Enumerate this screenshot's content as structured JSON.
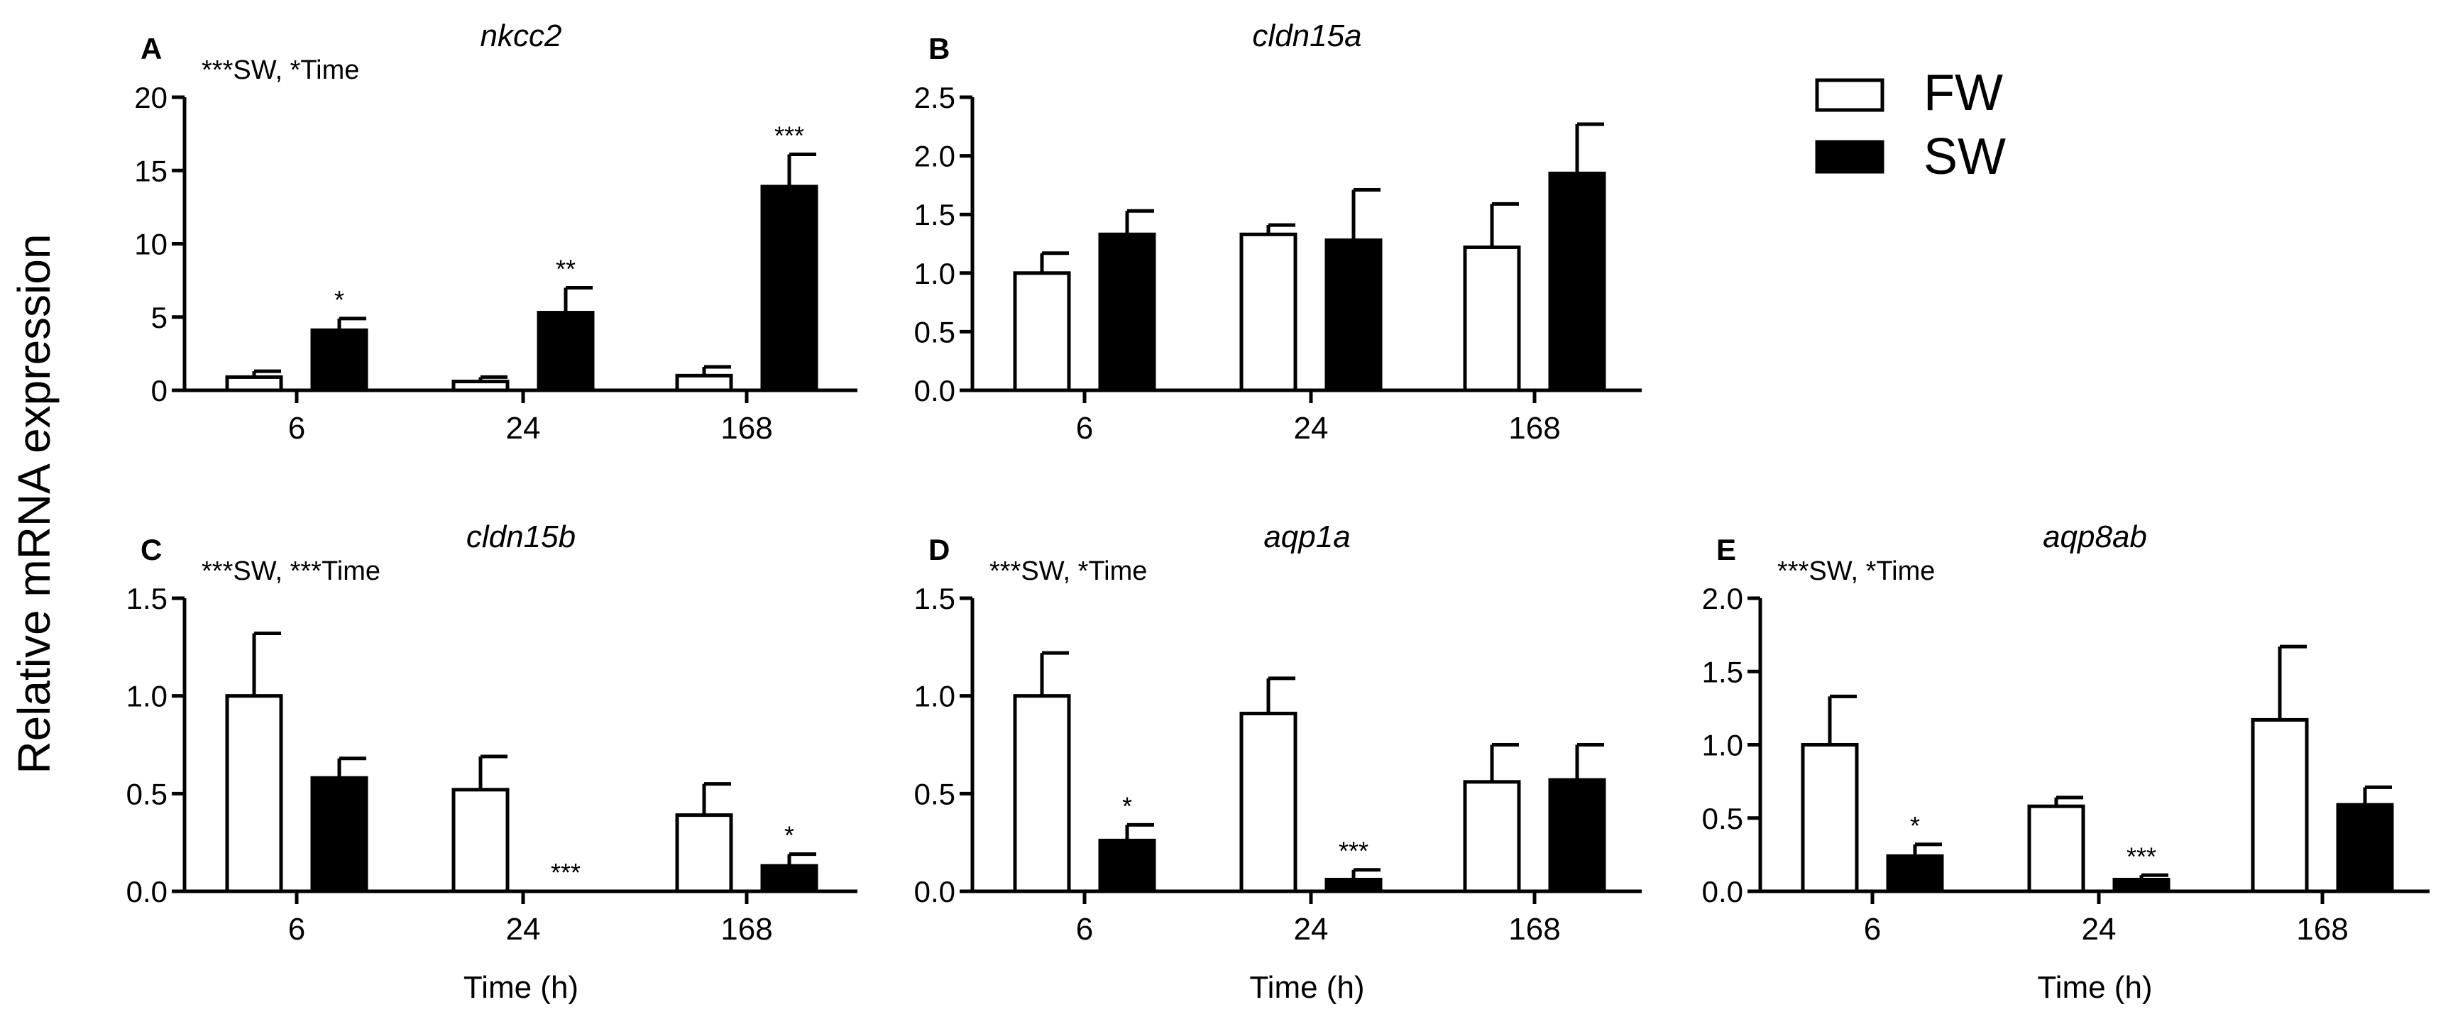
{
  "figure": {
    "ylabel": "Relative mRNA expression",
    "legend": [
      {
        "label": "FW",
        "fill": "#ffffff"
      },
      {
        "label": "SW",
        "fill": "#000000"
      }
    ]
  },
  "chart_data": [
    {
      "type": "bar",
      "letter": "A",
      "title": "nkcc2",
      "note": "***SW, *Time",
      "categories": [
        "6",
        "24",
        "168"
      ],
      "series": [
        {
          "name": "FW",
          "values": [
            0.9,
            0.6,
            1.0
          ],
          "errors": [
            0.4,
            0.3,
            0.6
          ],
          "sig": [
            "",
            "",
            ""
          ]
        },
        {
          "name": "SW",
          "values": [
            4.1,
            5.3,
            13.9
          ],
          "errors": [
            0.8,
            1.7,
            2.2
          ],
          "sig": [
            "*",
            "**",
            "***"
          ]
        }
      ],
      "ylim": [
        0,
        20
      ],
      "yticks": [
        "0",
        "5",
        "10",
        "15",
        "20"
      ],
      "xlabel": ""
    },
    {
      "type": "bar",
      "letter": "B",
      "title": "cldn15a",
      "note": "",
      "categories": [
        "6",
        "24",
        "168"
      ],
      "series": [
        {
          "name": "FW",
          "values": [
            1.0,
            1.33,
            1.22
          ],
          "errors": [
            0.17,
            0.08,
            0.37
          ],
          "sig": [
            "",
            "",
            ""
          ]
        },
        {
          "name": "SW",
          "values": [
            1.33,
            1.28,
            1.85
          ],
          "errors": [
            0.2,
            0.43,
            0.42
          ],
          "sig": [
            "",
            "",
            ""
          ]
        }
      ],
      "ylim": [
        0,
        2.5
      ],
      "yticks": [
        "0.0",
        "0.5",
        "1.0",
        "1.5",
        "2.0",
        "2.5"
      ],
      "xlabel": ""
    },
    {
      "type": "bar",
      "letter": "C",
      "title": "cldn15b",
      "note": "***SW, ***Time",
      "categories": [
        "6",
        "24",
        "168"
      ],
      "series": [
        {
          "name": "FW",
          "values": [
            1.0,
            0.52,
            0.39
          ],
          "errors": [
            0.32,
            0.17,
            0.16
          ],
          "sig": [
            "",
            "",
            ""
          ]
        },
        {
          "name": "SW",
          "values": [
            0.58,
            0.0,
            0.13
          ],
          "errors": [
            0.1,
            0.0,
            0.06
          ],
          "sig": [
            "",
            "***",
            "*"
          ]
        }
      ],
      "ylim": [
        0,
        1.5
      ],
      "yticks": [
        "0.0",
        "0.5",
        "1.0",
        "1.5"
      ],
      "xlabel": "Time (h)"
    },
    {
      "type": "bar",
      "letter": "D",
      "title": "aqp1a",
      "note": "***SW, *Time",
      "categories": [
        "6",
        "24",
        "168"
      ],
      "series": [
        {
          "name": "FW",
          "values": [
            1.0,
            0.91,
            0.56
          ],
          "errors": [
            0.22,
            0.18,
            0.19
          ],
          "sig": [
            "",
            "",
            ""
          ]
        },
        {
          "name": "SW",
          "values": [
            0.26,
            0.06,
            0.57
          ],
          "errors": [
            0.08,
            0.05,
            0.18
          ],
          "sig": [
            "*",
            "***",
            ""
          ]
        }
      ],
      "ylim": [
        0,
        1.5
      ],
      "yticks": [
        "0.0",
        "0.5",
        "1.0",
        "1.5"
      ],
      "xlabel": "Time (h)"
    },
    {
      "type": "bar",
      "letter": "E",
      "title": "aqp8ab",
      "note": "***SW, *Time",
      "categories": [
        "6",
        "24",
        "168"
      ],
      "series": [
        {
          "name": "FW",
          "values": [
            1.0,
            0.58,
            1.17
          ],
          "errors": [
            0.33,
            0.06,
            0.5
          ],
          "sig": [
            "",
            "",
            ""
          ]
        },
        {
          "name": "SW",
          "values": [
            0.24,
            0.08,
            0.59
          ],
          "errors": [
            0.08,
            0.03,
            0.12
          ],
          "sig": [
            "*",
            "***",
            ""
          ]
        }
      ],
      "ylim": [
        0,
        2.0
      ],
      "yticks": [
        "0.0",
        "0.5",
        "1.0",
        "1.5",
        "2.0"
      ],
      "xlabel": "Time (h)"
    }
  ]
}
